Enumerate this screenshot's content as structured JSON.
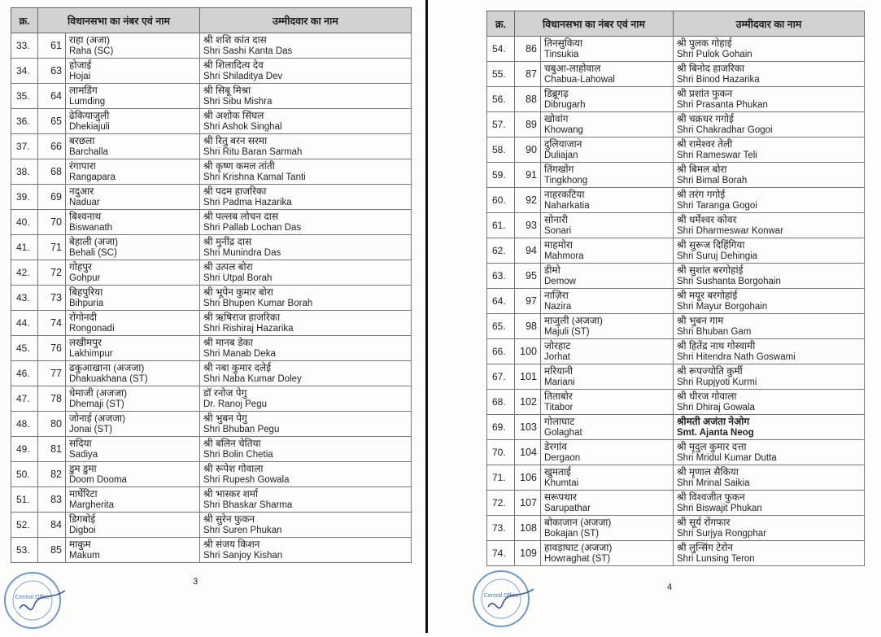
{
  "headers": {
    "sn": "क्र.",
    "constituency": "विधानसभा का नंबर एवं नाम",
    "candidate": "उम्मीदवार का नाम"
  },
  "pages": [
    {
      "page_number": "3",
      "rows": [
        {
          "sn": "33.",
          "no": "61",
          "ac_hi": "राहा (अजा)",
          "ac_en": "Raha (SC)",
          "cand_hi": "श्री शशि कांत दास",
          "cand_en": "Shri Sashi Kanta Das"
        },
        {
          "sn": "34.",
          "no": "63",
          "ac_hi": "होजाई",
          "ac_en": "Hojai",
          "cand_hi": "श्री शिलादित्य देव",
          "cand_en": "Shri Shiladitya Dev"
        },
        {
          "sn": "35.",
          "no": "64",
          "ac_hi": "लामडिंग",
          "ac_en": "Lumding",
          "cand_hi": "श्री सिबू मिश्रा",
          "cand_en": "Shri Sibu Mishra"
        },
        {
          "sn": "36.",
          "no": "65",
          "ac_hi": "ढेकियाजुली",
          "ac_en": "Dhekiajuli",
          "cand_hi": "श्री अशोक सिंघल",
          "cand_en": "Shri Ashok Singhal"
        },
        {
          "sn": "37.",
          "no": "66",
          "ac_hi": "बरछला",
          "ac_en": "Barchalla",
          "cand_hi": "श्री रितु बरन सरमा",
          "cand_en": "Shri Ritu Baran Sarmah"
        },
        {
          "sn": "38.",
          "no": "68",
          "ac_hi": "रंगापारा",
          "ac_en": "Rangapara",
          "cand_hi": "श्री कृष्ण कमल तांती",
          "cand_en": "Shri Krishna Kamal Tanti"
        },
        {
          "sn": "39.",
          "no": "69",
          "ac_hi": "नदुआर",
          "ac_en": "Naduar",
          "cand_hi": "श्री पदम हाजरिका",
          "cand_en": "Shri Padma Hazarika"
        },
        {
          "sn": "40.",
          "no": "70",
          "ac_hi": "बिश्वनाथ",
          "ac_en": "Biswanath",
          "cand_hi": "श्री पल्लब लोचन दास",
          "cand_en": "Shri Pallab Lochan Das"
        },
        {
          "sn": "41.",
          "no": "71",
          "ac_hi": "बेहाली (अजा)",
          "ac_en": "Behali (SC)",
          "cand_hi": "श्री मुनींद्र दास",
          "cand_en": "Shri Munindra Das"
        },
        {
          "sn": "42.",
          "no": "72",
          "ac_hi": "गोहपुर",
          "ac_en": "Gohpur",
          "cand_hi": "श्री उत्पल बोरा",
          "cand_en": "Shri Utpal Borah"
        },
        {
          "sn": "43.",
          "no": "73",
          "ac_hi": "बिहपुरिया",
          "ac_en": "Bihpuria",
          "cand_hi": "श्री भूपेन कुमार बोरा",
          "cand_en": "Shri Bhupen Kumar Borah"
        },
        {
          "sn": "44.",
          "no": "74",
          "ac_hi": "रोंगोनदी",
          "ac_en": "Rongonadi",
          "cand_hi": "श्री ऋषिराज हाजरिका",
          "cand_en": "Shri Rishiraj Hazarika"
        },
        {
          "sn": "45.",
          "no": "76",
          "ac_hi": "लखीमपुर",
          "ac_en": "Lakhimpur",
          "cand_hi": "श्री मानब डेका",
          "cand_en": "Shri Manab Deka"
        },
        {
          "sn": "46.",
          "no": "77",
          "ac_hi": "ढकुआखाना (अजजा)",
          "ac_en": "Dhakuakhana (ST)",
          "cand_hi": "श्री नबा कुमार दलेई",
          "cand_en": "Shri Naba Kumar Doley"
        },
        {
          "sn": "47.",
          "no": "78",
          "ac_hi": "धेमाजी (अजजा)",
          "ac_en": "Dhemaji (ST)",
          "cand_hi": "डॉ रनोज पेगु",
          "cand_en": "Dr. Ranoj Pegu"
        },
        {
          "sn": "48.",
          "no": "80",
          "ac_hi": "जोनाई (अजजा)",
          "ac_en": "Jonai (ST)",
          "cand_hi": "श्री भुबन पेगु",
          "cand_en": "Shri Bhuban Pegu"
        },
        {
          "sn": "49.",
          "no": "81",
          "ac_hi": "सदिया",
          "ac_en": "Sadiya",
          "cand_hi": "श्री बलिन चेतिया",
          "cand_en": "Shri Bolin Chetia"
        },
        {
          "sn": "50.",
          "no": "82",
          "ac_hi": "डुम डुमा",
          "ac_en": "Doom Dooma",
          "cand_hi": "श्री रूपेश गोवाला",
          "cand_en": "Shri Rupesh Gowala"
        },
        {
          "sn": "51.",
          "no": "83",
          "ac_hi": "मार्घेरिटा",
          "ac_en": "Margherita",
          "cand_hi": "श्री भास्कर शर्मा",
          "cand_en": "Shri Bhaskar Sharma"
        },
        {
          "sn": "52.",
          "no": "84",
          "ac_hi": "डिगबोई",
          "ac_en": "Digboi",
          "cand_hi": "श्री सुरेन फुकन",
          "cand_en": "Shri Suren Phukan"
        },
        {
          "sn": "53.",
          "no": "85",
          "ac_hi": "माकुम",
          "ac_en": "Makum",
          "cand_hi": "श्री संजय किशन",
          "cand_en": "Shri Sanjoy Kishan"
        }
      ]
    },
    {
      "page_number": "4",
      "rows": [
        {
          "sn": "54.",
          "no": "86",
          "ac_hi": "तिनसुकिया",
          "ac_en": "Tinsukia",
          "cand_hi": "श्री पुलक गोहाई",
          "cand_en": "Shri Pulok Gohain"
        },
        {
          "sn": "55.",
          "no": "87",
          "ac_hi": "चबुआ-लाहोवाल",
          "ac_en": "Chabua-Lahowal",
          "cand_hi": "श्री बिनोद हाजरिका",
          "cand_en": "Shri Binod Hazarika"
        },
        {
          "sn": "56.",
          "no": "88",
          "ac_hi": "डिब्रूगढ़",
          "ac_en": "Dibrugarh",
          "cand_hi": "श्री प्रशांत फुकन",
          "cand_en": "Shri Prasanta Phukan"
        },
        {
          "sn": "57.",
          "no": "89",
          "ac_hi": "खोवांग",
          "ac_en": "Khowang",
          "cand_hi": "श्री चक्रधर गगोई",
          "cand_en": "Shri Chakradhar Gogoi"
        },
        {
          "sn": "58.",
          "no": "90",
          "ac_hi": "दुलियाजान",
          "ac_en": "Duliajan",
          "cand_hi": "श्री रामेश्वर तेली",
          "cand_en": "Shri Rameswar Teli"
        },
        {
          "sn": "59.",
          "no": "91",
          "ac_hi": "तिंगखोंग",
          "ac_en": "Tingkhong",
          "cand_hi": "श्री बिमल बोरा",
          "cand_en": "Shri Bimal Borah"
        },
        {
          "sn": "60.",
          "no": "92",
          "ac_hi": "नाहरकटिया",
          "ac_en": "Naharkatia",
          "cand_hi": "श्री तरंग गगोई",
          "cand_en": "Shri Taranga Gogoi"
        },
        {
          "sn": "61.",
          "no": "93",
          "ac_hi": "सोनारी",
          "ac_en": "Sonari",
          "cand_hi": "श्री धर्मेश्वर कोवर",
          "cand_en": "Shri Dharmeswar Konwar"
        },
        {
          "sn": "62.",
          "no": "94",
          "ac_hi": "माहमोरा",
          "ac_en": "Mahmora",
          "cand_hi": "श्री सुरूज दिहिंगिया",
          "cand_en": "Shri Suruj Dehingia"
        },
        {
          "sn": "63.",
          "no": "95",
          "ac_hi": "डीमो",
          "ac_en": "Demow",
          "cand_hi": "श्री सुशांत बरगोहांई",
          "cand_en": "Shri Sushanta Borgohain"
        },
        {
          "sn": "64.",
          "no": "97",
          "ac_hi": "नाज़िरा",
          "ac_en": "Nazira",
          "cand_hi": "श्री मयूर बरगोहांई",
          "cand_en": "Shri Mayur Borgohain"
        },
        {
          "sn": "65.",
          "no": "98",
          "ac_hi": "माजुली (अजजा)",
          "ac_en": "Majuli (ST)",
          "cand_hi": "श्री भुबन गाम",
          "cand_en": "Shri Bhuban Gam"
        },
        {
          "sn": "66.",
          "no": "100",
          "ac_hi": "जोरहाट",
          "ac_en": "Jorhat",
          "cand_hi": "श्री हितेंद्र नाथ गोस्वामी",
          "cand_en": "Shri Hitendra Nath Goswami"
        },
        {
          "sn": "67.",
          "no": "101",
          "ac_hi": "मरियानी",
          "ac_en": "Mariani",
          "cand_hi": "श्री रूपज्योति कुर्मी",
          "cand_en": "Shri Rupjyoti Kurmi"
        },
        {
          "sn": "68.",
          "no": "102",
          "ac_hi": "तिताबोर",
          "ac_en": "Titabor",
          "cand_hi": "श्री धीरज गोवाला",
          "cand_en": "Shri Dhiraj Gowala"
        },
        {
          "sn": "69.",
          "no": "103",
          "ac_hi": "गोलाघाट",
          "ac_en": "Golaghat",
          "cand_hi": "श्रीमती अजंता नेओग",
          "cand_en": "Smt. Ajanta Neog",
          "bold": true
        },
        {
          "sn": "70.",
          "no": "104",
          "ac_hi": "डेरगांव",
          "ac_en": "Dergaon",
          "cand_hi": "श्री मृदुल कुमार दत्ता",
          "cand_en": "Shri Mridul Kumar Dutta"
        },
        {
          "sn": "71.",
          "no": "106",
          "ac_hi": "खुमताई",
          "ac_en": "Khumtai",
          "cand_hi": "श्री मृणाल सैकिया",
          "cand_en": "Shri Mrinal Saikia"
        },
        {
          "sn": "72.",
          "no": "107",
          "ac_hi": "सरूपथार",
          "ac_en": "Sarupathar",
          "cand_hi": "श्री विश्वजीत फुकन",
          "cand_en": "Shri Biswajit Phukan"
        },
        {
          "sn": "73.",
          "no": "108",
          "ac_hi": "बोकाजान (अजजा)",
          "ac_en": "Bokajan (ST)",
          "cand_hi": "श्री सूर्य रोंगफार",
          "cand_en": "Shri Surjya Rongphar"
        },
        {
          "sn": "74.",
          "no": "109",
          "ac_hi": "हावड़ाघाट (अजजा)",
          "ac_en": "Howraghat (ST)",
          "cand_hi": "श्री लुन्सिंग टेरोन",
          "cand_en": "Shri Lunsing Teron"
        }
      ]
    }
  ],
  "stamp": {
    "text": "Central Office",
    "color": "#4a7fc0"
  },
  "colors": {
    "header_bg": "#d2d2d2",
    "divider": "#111111"
  }
}
